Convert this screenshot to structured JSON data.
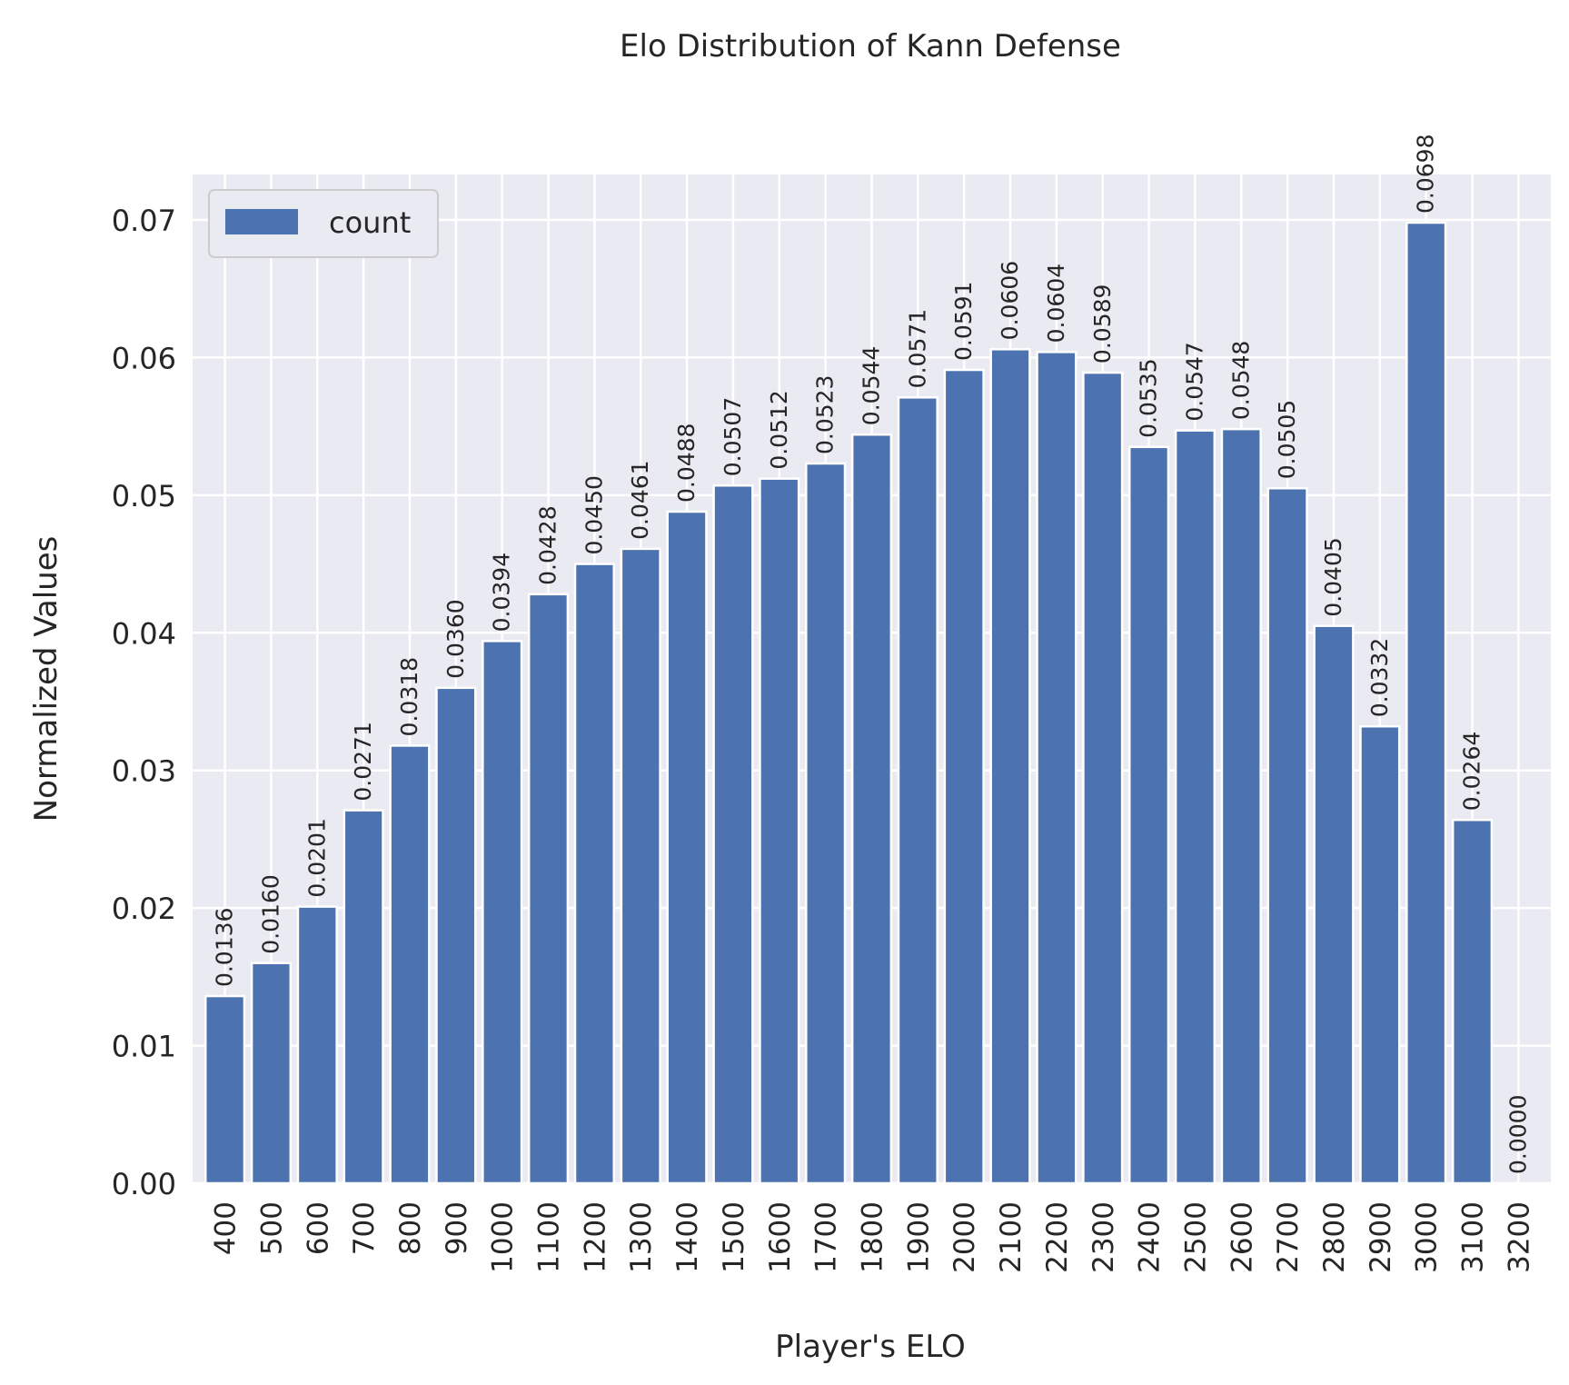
{
  "chart_data": {
    "type": "bar",
    "title": "Elo Distribution of Kann Defense",
    "xlabel": "Player's ELO",
    "ylabel": "Normalized Values",
    "legend": {
      "position": "top-left",
      "entries": [
        "count"
      ]
    },
    "grid": true,
    "ylim": [
      0,
      0.0733
    ],
    "yticks": [
      "0.00",
      "0.01",
      "0.02",
      "0.03",
      "0.04",
      "0.05",
      "0.06",
      "0.07"
    ],
    "categories": [
      "400",
      "500",
      "600",
      "700",
      "800",
      "900",
      "1000",
      "1100",
      "1200",
      "1300",
      "1400",
      "1500",
      "1600",
      "1700",
      "1800",
      "1900",
      "2000",
      "2100",
      "2200",
      "2300",
      "2400",
      "2500",
      "2600",
      "2700",
      "2800",
      "2900",
      "3000",
      "3100",
      "3200"
    ],
    "series": [
      {
        "name": "count",
        "color": "#4c72b0",
        "values": [
          0.0136,
          0.016,
          0.0201,
          0.0271,
          0.0318,
          0.036,
          0.0394,
          0.0428,
          0.045,
          0.0461,
          0.0488,
          0.0507,
          0.0512,
          0.0523,
          0.0544,
          0.0571,
          0.0591,
          0.0606,
          0.0604,
          0.0589,
          0.0535,
          0.0547,
          0.0548,
          0.0505,
          0.0405,
          0.0332,
          0.0698,
          0.0264,
          0.0
        ],
        "labels": [
          "0.0136",
          "0.0160",
          "0.0201",
          "0.0271",
          "0.0318",
          "0.0360",
          "0.0394",
          "0.0428",
          "0.0450",
          "0.0461",
          "0.0488",
          "0.0507",
          "0.0512",
          "0.0523",
          "0.0544",
          "0.0571",
          "0.0591",
          "0.0606",
          "0.0604",
          "0.0589",
          "0.0535",
          "0.0547",
          "0.0548",
          "0.0505",
          "0.0405",
          "0.0332",
          "0.0698",
          "0.0264",
          "0.0000"
        ]
      }
    ],
    "colors": {
      "background": "#eaeaf2",
      "grid": "#ffffff",
      "bar": "#4c72b0"
    }
  }
}
